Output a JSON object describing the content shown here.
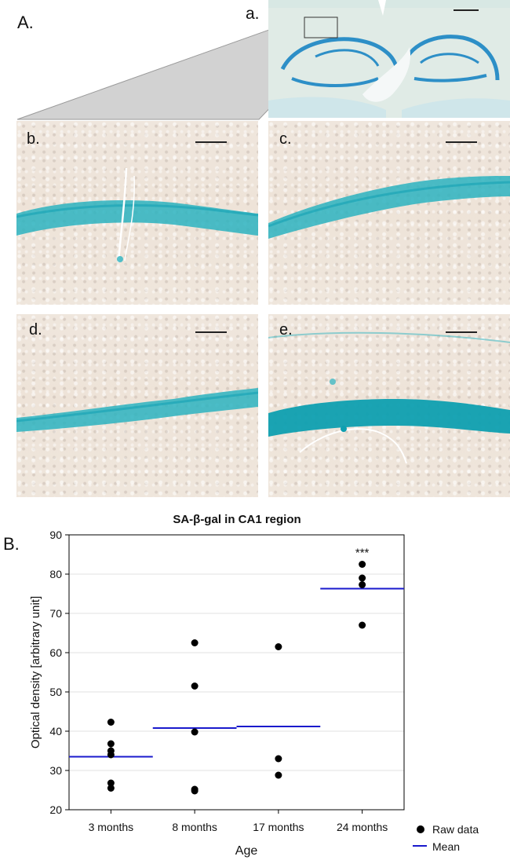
{
  "labels": {
    "panel_A": "A.",
    "panel_B": "B.",
    "sub_a": "a.",
    "sub_b": "b.",
    "sub_c": "c.",
    "sub_d": "d.",
    "sub_e": "e."
  },
  "colors": {
    "stain_blue": "#1fa8b8",
    "mean_line": "#1a1acc",
    "points": "#000000"
  },
  "chart_data": {
    "type": "scatter",
    "title": "SA-β-gal in CA1 region",
    "xlabel": "Age",
    "ylabel": "Optical density [arbitrary unit]",
    "ylim": [
      20,
      90
    ],
    "yticks": [
      20,
      30,
      40,
      50,
      60,
      70,
      80,
      90
    ],
    "categories": [
      "3 months",
      "8 months",
      "17 months",
      "24 months"
    ],
    "series": [
      {
        "name": "Raw data",
        "values": [
          [
            25.5,
            26.8,
            34.0,
            35.0,
            36.8,
            42.3
          ],
          [
            24.8,
            25.2,
            39.8,
            51.5,
            62.5
          ],
          [
            28.8,
            33.0,
            61.5
          ],
          [
            67.0,
            77.3,
            79.0,
            82.5
          ]
        ]
      },
      {
        "name": "Mean",
        "values": [
          33.5,
          40.8,
          41.2,
          76.3
        ]
      }
    ],
    "annotations": [
      {
        "category": "24 months",
        "text": "***"
      }
    ],
    "legend_position": "bottom-right",
    "grid": true
  }
}
